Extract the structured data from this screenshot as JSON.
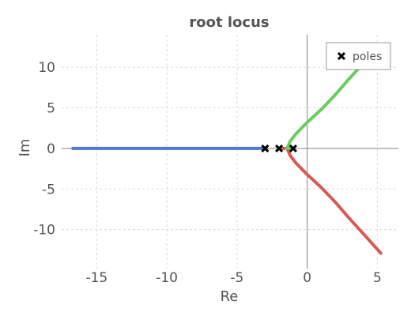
{
  "chart_data": {
    "type": "line",
    "title": "root locus",
    "xlabel": "Re",
    "ylabel": "Im",
    "xlim": [
      -17.5,
      6.5
    ],
    "ylim": [
      -14.8,
      14
    ],
    "xticks": [
      -15,
      -10,
      -5,
      0,
      5
    ],
    "xtick_labels": [
      "-15",
      "-10",
      "-5",
      "0",
      "5"
    ],
    "yticks": [
      -10,
      -5,
      0,
      5,
      10
    ],
    "ytick_labels": [
      "-10",
      "-5",
      "0",
      "5",
      "10"
    ],
    "grid": true,
    "legend": {
      "entries": [
        "poles"
      ],
      "placement": "top-right"
    },
    "series": [
      {
        "color": "#5079d4",
        "x": [
          -16.7,
          -15,
          -10,
          -5,
          -3.0
        ],
        "y": [
          0,
          0,
          0,
          0,
          0
        ]
      },
      {
        "color": "#d45b55",
        "x": [
          -2.0,
          -1.6,
          -1.47,
          -1.4,
          -1.2,
          -0.8,
          0.0,
          1.0,
          2.0,
          3.0,
          4.0,
          5.25
        ],
        "y": [
          0,
          0,
          0,
          -0.15,
          -0.9,
          -1.8,
          -3.2,
          -4.8,
          -6.6,
          -8.6,
          -10.5,
          -12.9
        ]
      },
      {
        "color": "#6acb5e",
        "x": [
          -1.0,
          -1.3,
          -1.47,
          -1.4,
          -1.2,
          -0.8,
          0.0,
          1.0,
          2.0,
          3.0,
          3.8
        ],
        "y": [
          0,
          0,
          0,
          0.15,
          0.9,
          1.8,
          3.2,
          4.8,
          6.6,
          8.6,
          10.1
        ]
      }
    ],
    "poles": {
      "name": "poles",
      "marker": "x",
      "x": [
        -3,
        -2,
        -1
      ],
      "y": [
        0,
        0,
        0
      ]
    }
  }
}
